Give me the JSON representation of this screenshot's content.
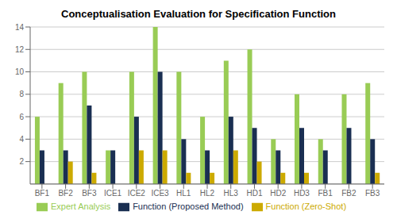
{
  "chart_data": {
    "type": "bar",
    "title": "Conceptualisation Evaluation for Specification Function",
    "categories": [
      "BF1",
      "BF2",
      "BF3",
      "ICE1",
      "ICE2",
      "ICE3",
      "HL1",
      "HL2",
      "HL3",
      "HD1",
      "HD2",
      "HD3",
      "FB1",
      "FB2",
      "FB3"
    ],
    "series": [
      {
        "name": "Expert Analysis",
        "color": "#99cc55",
        "values": [
          6,
          9,
          10,
          3,
          10,
          14,
          10,
          6,
          11,
          12,
          4,
          8,
          4,
          8,
          9
        ]
      },
      {
        "name": "Function (Proposed Method)",
        "color": "#1a2f52",
        "values": [
          3,
          3,
          7,
          3,
          6,
          10,
          4,
          3,
          6,
          5,
          3,
          5,
          3,
          5,
          4
        ]
      },
      {
        "name": "Function (Zero-Shot)",
        "color": "#ccaa00",
        "values": [
          0,
          2,
          1,
          0,
          3,
          3,
          1,
          1,
          3,
          2,
          1,
          1,
          0,
          0,
          1
        ]
      }
    ],
    "ylim": [
      0,
      14
    ],
    "yticks": [
      2,
      4,
      6,
      8,
      10,
      12,
      14
    ],
    "grid": true,
    "legend": "bottom"
  }
}
